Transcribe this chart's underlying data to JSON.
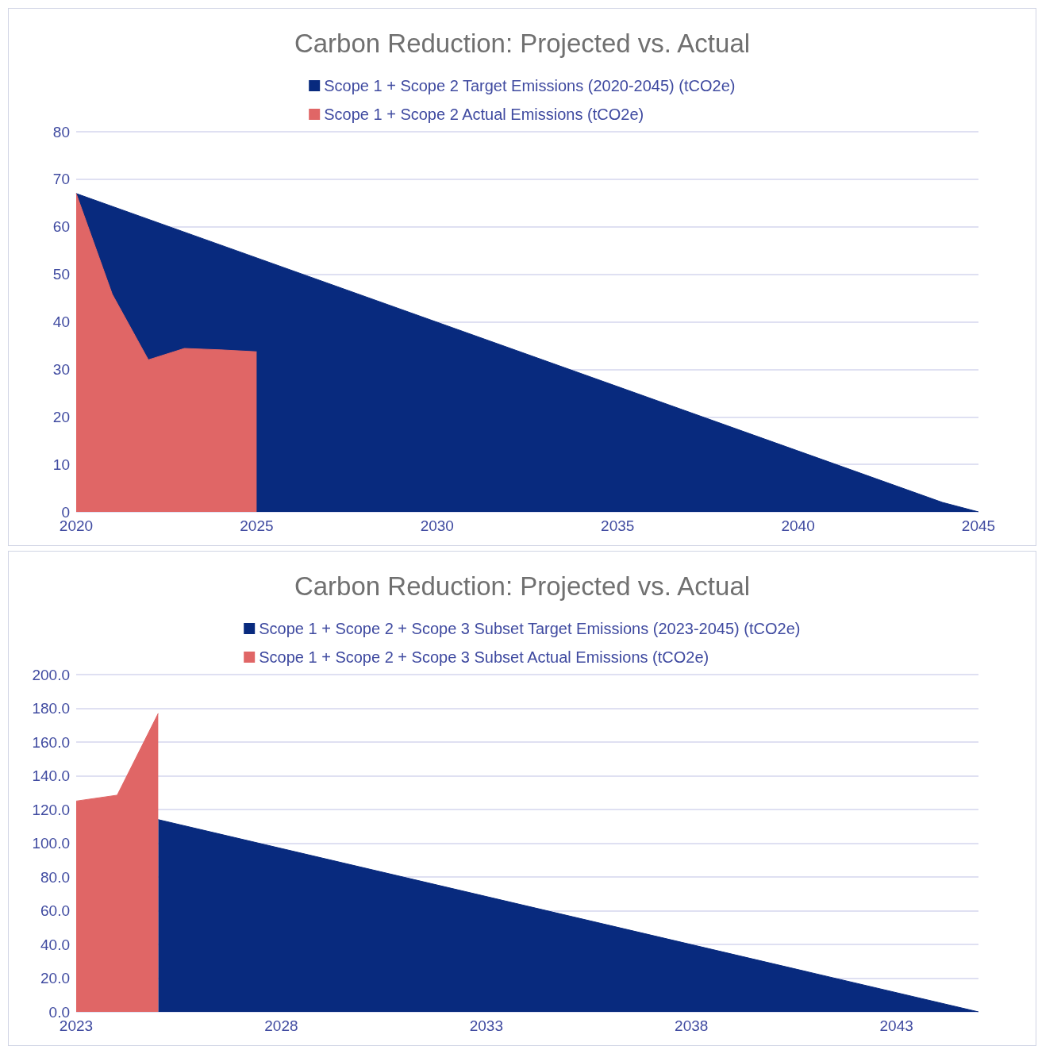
{
  "chart_data": [
    {
      "type": "area",
      "title": "Carbon Reduction: Projected vs. Actual",
      "xlim": [
        2020,
        2045
      ],
      "xticks": [
        2020,
        2025,
        2030,
        2035,
        2040,
        2045
      ],
      "ylim": [
        0,
        80
      ],
      "yticks": [
        0,
        10,
        20,
        30,
        40,
        50,
        60,
        70,
        80
      ],
      "grid": "y",
      "legend": "top",
      "marker": "none",
      "series": [
        {
          "name": "Scope 1 + Scope 2 Target Emissions (2020-2045) (tCO2e)",
          "color": "#082a7e",
          "x": [
            2020,
            2044,
            2045
          ],
          "values": [
            67,
            2,
            0
          ]
        },
        {
          "name": "Scope 1 + Scope 2 Actual Emissions (tCO2e)",
          "color": "#e06666",
          "x": [
            2020,
            2021,
            2022,
            2023,
            2024,
            2025
          ],
          "values": [
            67,
            45.8,
            32,
            34.4,
            34.1,
            33.7
          ]
        }
      ]
    },
    {
      "type": "area",
      "title": "Carbon Reduction: Projected vs. Actual",
      "xlim": [
        2023,
        2045
      ],
      "xticks": [
        2023,
        2028,
        2033,
        2038,
        2043
      ],
      "ylim": [
        0,
        200
      ],
      "yticks": [
        {
          "value": 0,
          "label": "0.0"
        },
        {
          "value": 20,
          "label": "20.0"
        },
        {
          "value": 40,
          "label": "40.0"
        },
        {
          "value": 60,
          "label": "60.0"
        },
        {
          "value": 80,
          "label": "80.0"
        },
        {
          "value": 100,
          "label": "100.0"
        },
        {
          "value": 120,
          "label": "120.0"
        },
        {
          "value": 140,
          "label": "140.0"
        },
        {
          "value": 160,
          "label": "160.0"
        },
        {
          "value": 180,
          "label": "180.0"
        },
        {
          "value": 200,
          "label": "200.0"
        }
      ],
      "grid": "y",
      "legend": "top",
      "marker": "none",
      "series": [
        {
          "name": "Scope 1 + Scope 2 + Scope 3 Subset Target Emissions (2023-2045) (tCO2e)",
          "color": "#082a7e",
          "x": [
            2025,
            2045
          ],
          "values": [
            114,
            0
          ]
        },
        {
          "name": "Scope 1 + Scope 2 + Scope 3 Subset Actual Emissions (tCO2e)",
          "color": "#e06666",
          "x": [
            2023,
            2024,
            2025
          ],
          "values": [
            125,
            128.5,
            177
          ]
        }
      ]
    }
  ]
}
